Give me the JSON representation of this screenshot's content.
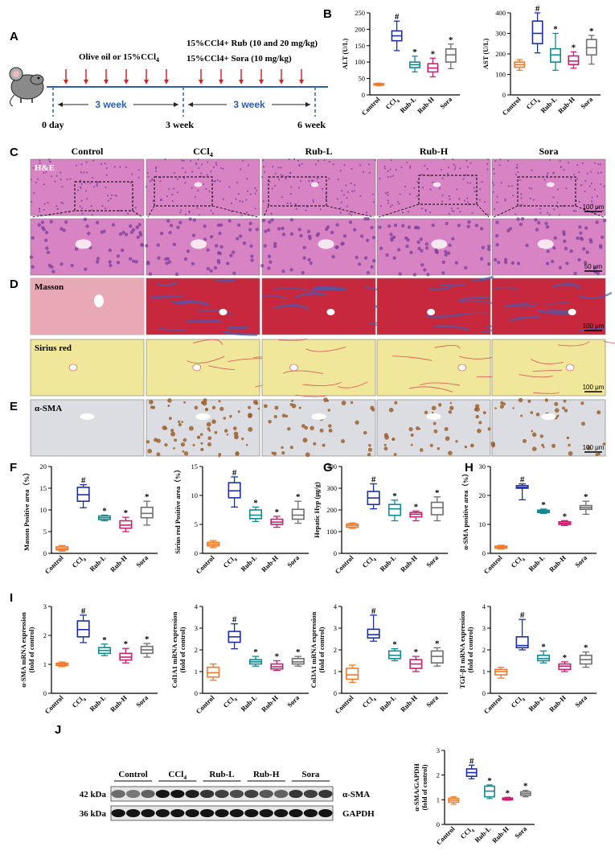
{
  "panel_letters": [
    "A",
    "B",
    "C",
    "D",
    "E",
    "F",
    "G",
    "H",
    "I",
    "J"
  ],
  "colors": {
    "Control": "#f07a2c",
    "CCl4": "#1c2fa8",
    "Rub-L": "#14898f",
    "Rub-H": "#c8206e",
    "Sora": "#6f6f6f",
    "he_tissue": "#d884c4",
    "masson_tissue": "#c8283e",
    "sirius_tissue": "#f1e79a",
    "sma_tissue": "#dcdde3"
  },
  "groups": [
    "Control",
    "CCl4",
    "Rub-L",
    "Rub-H",
    "Sora"
  ],
  "timeline": {
    "phase1_label": "Olive oil or 15%CCl4",
    "phase2_label_line1": "15%CCl4+ Rub (10 and 20 mg/kg)",
    "phase2_label_line2": "15%CCl4+ Sora (10 mg/kg)",
    "duration1": "3 week",
    "duration2": "3 week",
    "time_marks": [
      "0 day",
      "3 week",
      "6 week"
    ]
  },
  "histology": {
    "column_headers": [
      "Control",
      "CCl4",
      "Rub-L",
      "Rub-H",
      "Sora"
    ],
    "rows": [
      {
        "label": "H&E",
        "scale_bar": "100 μm"
      },
      {
        "label": "",
        "scale_bar": "50 μm"
      },
      {
        "label": "Masson",
        "scale_bar": "100 μm"
      },
      {
        "label": "Sirius red",
        "scale_bar": "100 μm"
      },
      {
        "label": "α-SMA",
        "scale_bar": "100 μm"
      }
    ]
  },
  "western_blot": {
    "groups": [
      "Control",
      "CCl4",
      "Rub-L",
      "Rub-H",
      "Sora"
    ],
    "bands": [
      {
        "kda": "42 kDa",
        "protein": "α-SMA"
      },
      {
        "kda": "36 kDa",
        "protein": "GAPDH"
      }
    ],
    "asma_intensity": [
      0.55,
      0.5,
      0.6,
      0.95,
      0.95,
      0.9,
      0.8,
      0.75,
      0.7,
      0.75,
      0.65,
      0.6,
      0.8,
      0.75,
      0.8
    ],
    "gapdh_intensity": [
      0.95,
      0.95,
      0.95,
      0.95,
      0.95,
      0.95,
      0.95,
      0.95,
      0.95,
      0.95,
      0.95,
      0.95,
      0.95,
      0.95,
      0.95
    ]
  },
  "chart_data": [
    {
      "type": "box",
      "id": "alt",
      "ylabel": "ALT (U/L)",
      "ylim": [
        0,
        250
      ],
      "yticks": [
        0,
        50,
        100,
        150,
        200,
        250
      ],
      "categories": [
        "Control",
        "CCl4",
        "Rub-L",
        "Rub-H",
        "Sora"
      ],
      "boxes": [
        [
          28,
          30,
          32,
          34,
          36
        ],
        [
          135,
          165,
          180,
          195,
          225
        ],
        [
          70,
          83,
          92,
          100,
          118
        ],
        [
          55,
          70,
          82,
          95,
          112
        ],
        [
          80,
          100,
          122,
          140,
          155
        ]
      ],
      "marks": [
        "",
        "#",
        "*",
        "*",
        "*"
      ]
    },
    {
      "type": "box",
      "id": "ast",
      "ylabel": "AST (U/L)",
      "ylim": [
        0,
        400
      ],
      "yticks": [
        0,
        100,
        200,
        300,
        400
      ],
      "categories": [
        "Control",
        "CCl4",
        "Rub-L",
        "Rub-H",
        "Sora"
      ],
      "boxes": [
        [
          120,
          135,
          148,
          160,
          172
        ],
        [
          205,
          250,
          300,
          360,
          420
        ],
        [
          120,
          160,
          195,
          225,
          300
        ],
        [
          130,
          148,
          165,
          190,
          210
        ],
        [
          150,
          195,
          230,
          270,
          290
        ]
      ],
      "marks": [
        "",
        "#",
        "*",
        "*",
        "*"
      ]
    },
    {
      "type": "box",
      "id": "masson",
      "ylabel": "Masson Positive area（%）",
      "ylim": [
        0,
        20
      ],
      "yticks": [
        0,
        5,
        10,
        15,
        20
      ],
      "categories": [
        "Control",
        "CCl4",
        "Rub-L",
        "Rub-H",
        "Sora"
      ],
      "boxes": [
        [
          0.5,
          0.8,
          1.1,
          1.5,
          1.8
        ],
        [
          10.5,
          12,
          13.5,
          15.2,
          15.8
        ],
        [
          7.5,
          7.8,
          8.2,
          8.6,
          8.8
        ],
        [
          5,
          5.8,
          6.5,
          7.5,
          8.3
        ],
        [
          6.5,
          8.2,
          9.2,
          10.6,
          12
        ]
      ],
      "marks": [
        "",
        "#",
        "*",
        "*",
        "*"
      ]
    },
    {
      "type": "box",
      "id": "sirius",
      "ylabel": "Sirius red Positive area（%）",
      "ylim": [
        0,
        15
      ],
      "yticks": [
        0,
        5,
        10,
        15
      ],
      "categories": [
        "Control",
        "CCl4",
        "Rub-L",
        "Rub-H",
        "Sora"
      ],
      "boxes": [
        [
          1,
          1.3,
          1.6,
          1.9,
          2.2
        ],
        [
          8,
          9.6,
          10.8,
          12.2,
          13.2
        ],
        [
          5.5,
          6,
          6.6,
          7.5,
          8
        ],
        [
          4.5,
          5,
          5.4,
          5.9,
          6.4
        ],
        [
          5.2,
          5.9,
          6.6,
          7.6,
          9
        ]
      ],
      "marks": [
        "",
        "#",
        "*",
        "*",
        "*"
      ]
    },
    {
      "type": "box",
      "id": "hyp",
      "ylabel": "Hepatic Hyp (μg/g)",
      "ylim": [
        0,
        400
      ],
      "yticks": [
        0,
        100,
        200,
        300,
        400
      ],
      "categories": [
        "Control",
        "CCl4",
        "Rub-L",
        "Rub-H",
        "Sora"
      ],
      "boxes": [
        [
          115,
          120,
          128,
          135,
          140
        ],
        [
          205,
          225,
          255,
          285,
          320
        ],
        [
          150,
          175,
          205,
          225,
          245
        ],
        [
          150,
          168,
          180,
          188,
          195
        ],
        [
          150,
          178,
          210,
          235,
          260
        ]
      ],
      "marks": [
        "",
        "#",
        "*",
        "*",
        "*"
      ]
    },
    {
      "type": "box",
      "id": "sma_area",
      "ylabel": "α-SMA positive area（%）",
      "ylim": [
        0,
        30
      ],
      "yticks": [
        0,
        10,
        20,
        30
      ],
      "categories": [
        "Control",
        "CCl4",
        "Rub-L",
        "Rub-H",
        "Sora"
      ],
      "boxes": [
        [
          1.5,
          1.8,
          2.2,
          2.5,
          2.8
        ],
        [
          18.5,
          22.5,
          22.8,
          23.4,
          24
        ],
        [
          13.8,
          14.1,
          14.5,
          14.9,
          15.3
        ],
        [
          9.6,
          10,
          10.4,
          10.9,
          11.3
        ],
        [
          13.5,
          15.2,
          15.8,
          16.5,
          18
        ]
      ],
      "marks": [
        "",
        "#",
        "*",
        "*",
        "*"
      ]
    },
    {
      "type": "box",
      "id": "sma_mrna",
      "ylabel": "α-SMA mRNA expression (fold of control)",
      "ylim": [
        0,
        3
      ],
      "yticks": [
        0,
        1,
        2,
        3
      ],
      "categories": [
        "Control",
        "CCl4",
        "Rub-L",
        "Rub-H",
        "Sora"
      ],
      "boxes": [
        [
          0.92,
          0.96,
          1.0,
          1.04,
          1.08
        ],
        [
          1.75,
          1.95,
          2.2,
          2.5,
          2.7
        ],
        [
          1.3,
          1.38,
          1.48,
          1.58,
          1.7
        ],
        [
          1.05,
          1.15,
          1.25,
          1.38,
          1.55
        ],
        [
          1.25,
          1.38,
          1.5,
          1.62,
          1.72
        ]
      ],
      "marks": [
        "",
        "#",
        "*",
        "*",
        "*"
      ]
    },
    {
      "type": "box",
      "id": "col1a1",
      "ylabel": "Col1A1 mRNA expression (fold of control)",
      "ylim": [
        0,
        4
      ],
      "yticks": [
        0,
        1,
        2,
        3,
        4
      ],
      "categories": [
        "Control",
        "CCl4",
        "Rub-L",
        "Rub-H",
        "Sora"
      ],
      "boxes": [
        [
          0.6,
          0.75,
          0.95,
          1.2,
          1.35
        ],
        [
          2.05,
          2.35,
          2.6,
          2.85,
          3.2
        ],
        [
          1.25,
          1.35,
          1.45,
          1.55,
          1.7
        ],
        [
          1.05,
          1.12,
          1.22,
          1.35,
          1.5
        ],
        [
          1.25,
          1.35,
          1.45,
          1.6,
          1.7
        ]
      ],
      "marks": [
        "",
        "#",
        "*",
        "*",
        "*"
      ]
    },
    {
      "type": "box",
      "id": "col3a1",
      "ylabel": "Col3A1 mRNA expression (fold of control)",
      "ylim": [
        0,
        4
      ],
      "yticks": [
        0,
        1,
        2,
        3,
        4
      ],
      "categories": [
        "Control",
        "CCl4",
        "Rub-L",
        "Rub-H",
        "Sora"
      ],
      "boxes": [
        [
          0.5,
          0.65,
          0.85,
          1.15,
          1.3
        ],
        [
          2.4,
          2.55,
          2.7,
          2.95,
          3.6
        ],
        [
          1.5,
          1.6,
          1.75,
          1.95,
          2.05
        ],
        [
          1.0,
          1.15,
          1.35,
          1.55,
          1.7
        ],
        [
          1.25,
          1.4,
          1.7,
          1.95,
          2.1
        ]
      ],
      "marks": [
        "",
        "#",
        "*",
        "*",
        "*"
      ]
    },
    {
      "type": "box",
      "id": "tgfb1",
      "ylabel": "TGF-β1 mRNA expression (fold of control)",
      "ylim": [
        0,
        4
      ],
      "yticks": [
        0,
        1,
        2,
        3,
        4
      ],
      "categories": [
        "Control",
        "CCl4",
        "Rub-L",
        "Rub-H",
        "Sora"
      ],
      "boxes": [
        [
          0.7,
          0.85,
          1.0,
          1.1,
          1.2
        ],
        [
          2.0,
          2.1,
          2.2,
          2.6,
          3.4
        ],
        [
          1.4,
          1.5,
          1.6,
          1.75,
          1.95
        ],
        [
          1.0,
          1.1,
          1.25,
          1.35,
          1.45
        ],
        [
          1.2,
          1.35,
          1.55,
          1.75,
          1.9
        ]
      ],
      "marks": [
        "",
        "#",
        "*",
        "*",
        "*"
      ]
    },
    {
      "type": "box",
      "id": "wb_ratio",
      "ylabel": "α-SMA/GAPDH (fold of control)",
      "ylim": [
        0,
        3
      ],
      "yticks": [
        0,
        1,
        2,
        3
      ],
      "categories": [
        "Control",
        "CCl4",
        "Rub-L",
        "Rub-H",
        "Sora"
      ],
      "boxes": [
        [
          0.82,
          0.9,
          0.98,
          1.06,
          1.12
        ],
        [
          1.85,
          1.95,
          2.1,
          2.25,
          2.4
        ],
        [
          1.05,
          1.12,
          1.35,
          1.55,
          1.6
        ],
        [
          0.98,
          1.0,
          1.03,
          1.07,
          1.1
        ],
        [
          1.12,
          1.18,
          1.25,
          1.32,
          1.38
        ]
      ],
      "marks": [
        "",
        "#",
        "*",
        "*",
        "*"
      ]
    }
  ]
}
